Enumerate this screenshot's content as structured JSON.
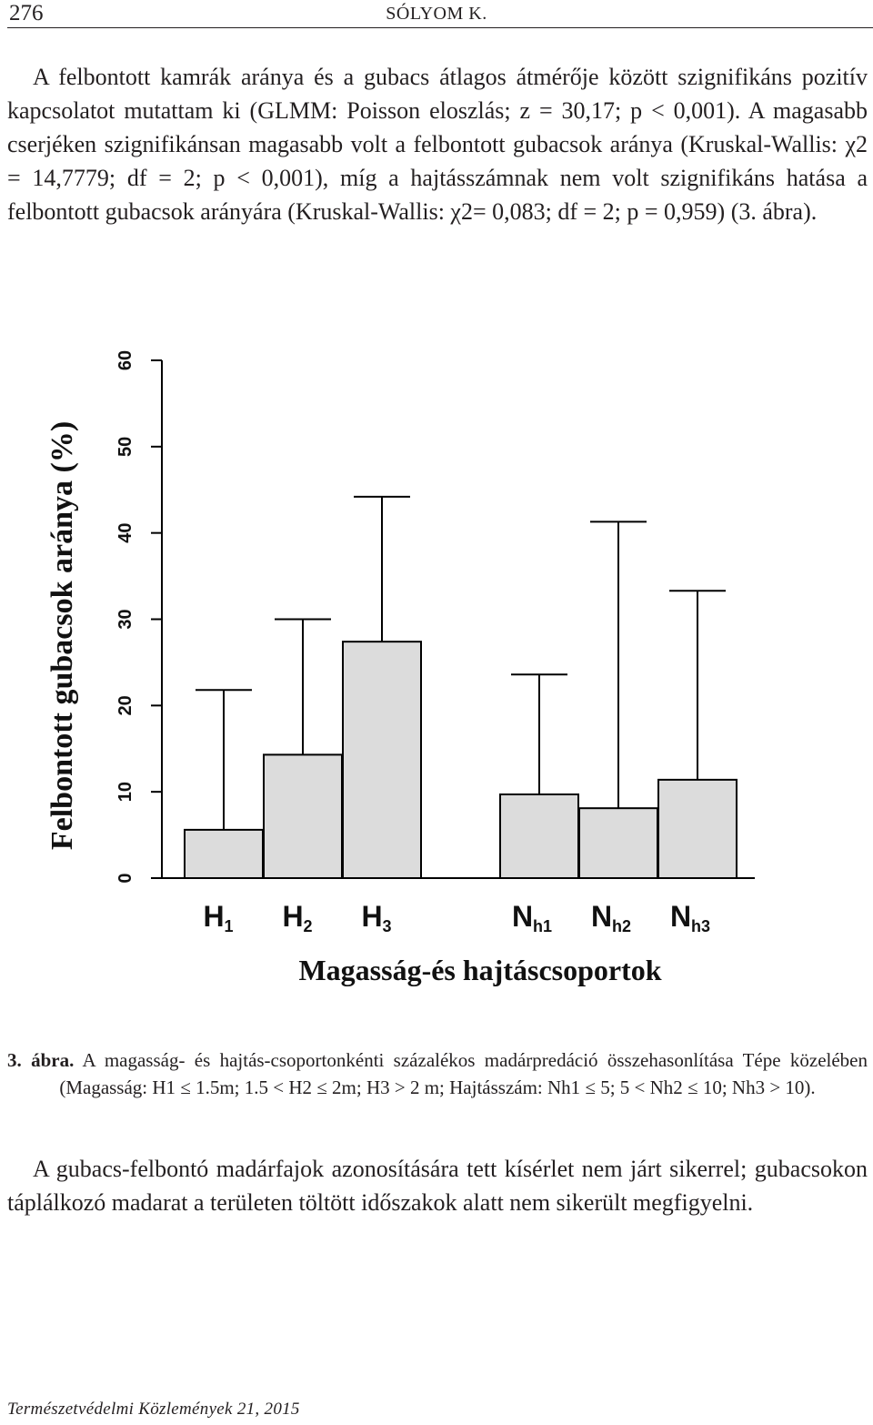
{
  "header": {
    "page_number": "276",
    "running_head": "SÓLYOM K."
  },
  "paragraph1": "A felbontott kamrák aránya és a gubacs átlagos átmérője között szignifikáns pozitív kapcsolatot mutattam ki (GLMM: Poisson eloszlás; z = 30,17; p < 0,001). A magasabb cserjéken szignifikánsan magasabb volt a felbontott gubacsok aránya (Kruskal-Wallis: χ2 = 14,7779; df = 2; p < 0,001), míg a hajtásszámnak nem volt szignifikáns hatása a felbontott gubacsok arányára (Kruskal-Wallis: χ2= 0,083; df = 2; p = 0,959) (3. ábra).",
  "chart_data": {
    "type": "bar",
    "title": "",
    "ylabel": "Felbontott gubacsok aránya (%)",
    "xlabel": "Magasság-és hajtáscsoportok",
    "ylim": [
      0,
      60
    ],
    "yticks": [
      "0",
      "10",
      "20",
      "30",
      "40",
      "50",
      "60"
    ],
    "grid": false,
    "categories": [
      {
        "main": "H",
        "sub": "1"
      },
      {
        "main": "H",
        "sub": "2"
      },
      {
        "main": "H",
        "sub": "3"
      },
      {
        "main": "N",
        "sub": "h1"
      },
      {
        "main": "N",
        "sub": "h2"
      },
      {
        "main": "N",
        "sub": "h3"
      }
    ],
    "values": [
      5.6,
      14.3,
      27.4,
      9.7,
      8.1,
      11.4
    ],
    "error_upper": [
      21.8,
      30.0,
      44.2,
      23.6,
      41.3,
      33.3
    ],
    "bar_color": "#dcdcdc"
  },
  "caption": {
    "label": "3. ábra.",
    "text": " A magasság- és hajtás-csoportonkénti százalékos madárpredáció összehasonlítása Tépe közelében (Magasság: H1 ≤ 1.5m; 1.5 < H2 ≤ 2m; H3 > 2 m; Hajtásszám: Nh1 ≤ 5; 5 < Nh2 ≤ 10; Nh3 > 10)."
  },
  "paragraph2": "A gubacs-felbontó madárfajok azonosítására tett kísérlet nem járt sikerrel; gubacsokon táplálkozó madarat a területen töltött időszakok alatt nem sikerült megfigyelni.",
  "footer": "Természetvédelmi Közlemények 21, 2015"
}
